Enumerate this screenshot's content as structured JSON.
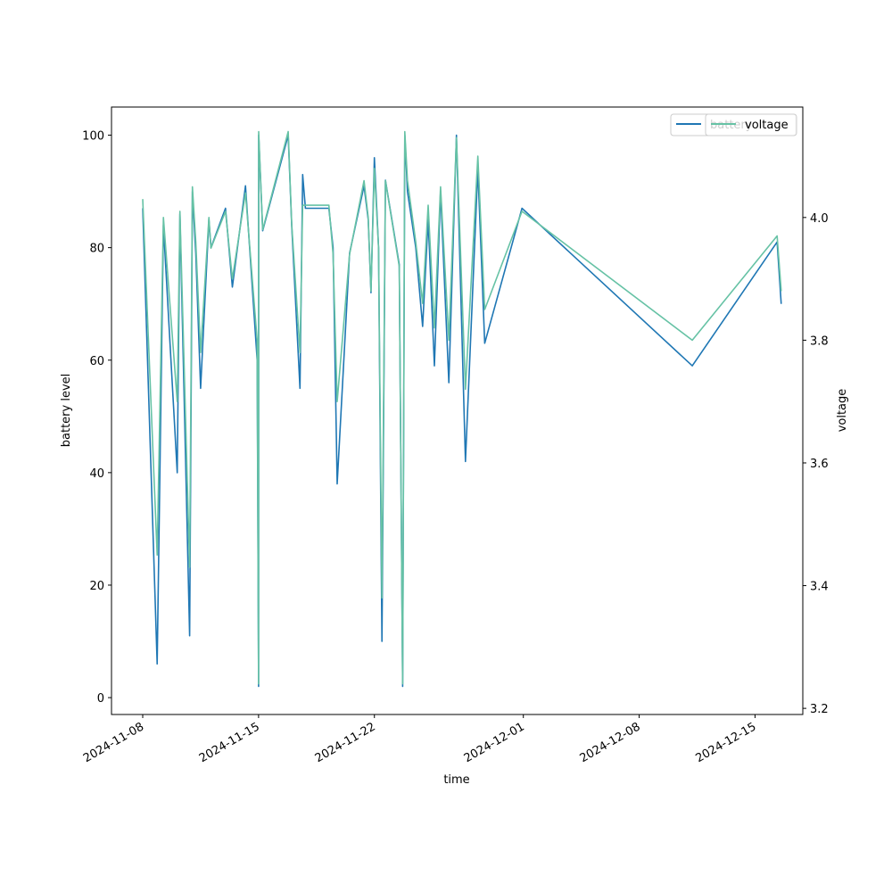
{
  "chart_data": {
    "type": "line",
    "xlabel": "time",
    "ylabel_left": "battery level",
    "ylabel_right": "voltage",
    "xlim": [
      "2024-11-08",
      "2024-12-16"
    ],
    "ylim_left": [
      -3,
      105
    ],
    "ylim_right": [
      3.19,
      4.18
    ],
    "x_ticks": [
      "2024-11-08",
      "2024-11-15",
      "2024-11-22",
      "2024-12-01",
      "2024-12-08",
      "2024-12-15"
    ],
    "y_ticks_left": [
      0,
      20,
      40,
      60,
      80,
      100
    ],
    "y_ticks_right": [
      3.2,
      3.4,
      3.6,
      3.8,
      4.0
    ],
    "grid": false,
    "legend_position": "top-right",
    "series": [
      {
        "name": "battery",
        "axis": "left",
        "color": "#1f77b4",
        "points": [
          [
            "2024-11-08T00:00",
            87
          ],
          [
            "2024-11-08T21:00",
            6
          ],
          [
            "2024-11-09T06:00",
            84
          ],
          [
            "2024-11-10T02:00",
            40
          ],
          [
            "2024-11-10T06:00",
            86
          ],
          [
            "2024-11-10T20:00",
            11
          ],
          [
            "2024-11-11T00:00",
            90
          ],
          [
            "2024-11-11T05:00",
            79
          ],
          [
            "2024-11-11T12:00",
            55
          ],
          [
            "2024-11-12T00:00",
            85
          ],
          [
            "2024-11-12T03:00",
            80
          ],
          [
            "2024-11-13T00:00",
            87
          ],
          [
            "2024-11-13T10:00",
            73
          ],
          [
            "2024-11-14T05:00",
            91
          ],
          [
            "2024-11-14T22:00",
            60
          ],
          [
            "2024-11-15T00:00",
            2
          ],
          [
            "2024-11-15T00:10",
            100
          ],
          [
            "2024-11-15T06:00",
            83
          ],
          [
            "2024-11-16T19:00",
            100
          ],
          [
            "2024-11-17T00:00",
            84
          ],
          [
            "2024-11-17T12:00",
            55
          ],
          [
            "2024-11-17T16:00",
            93
          ],
          [
            "2024-11-17T20:00",
            87
          ],
          [
            "2024-11-19T06:00",
            87
          ],
          [
            "2024-11-19T12:00",
            80
          ],
          [
            "2024-11-19T18:00",
            38
          ],
          [
            "2024-11-20T12:00",
            79
          ],
          [
            "2024-11-21T09:00",
            91
          ],
          [
            "2024-11-21T15:00",
            85
          ],
          [
            "2024-11-21T19:00",
            72
          ],
          [
            "2024-11-22T00:00",
            96
          ],
          [
            "2024-11-22T06:00",
            80
          ],
          [
            "2024-11-22T11:00",
            10
          ],
          [
            "2024-11-22T16:00",
            92
          ],
          [
            "2024-11-23T12:00",
            77
          ],
          [
            "2024-11-23T17:00",
            2
          ],
          [
            "2024-11-23T20:00",
            100
          ],
          [
            "2024-11-24T00:00",
            90
          ],
          [
            "2024-11-24T12:00",
            80
          ],
          [
            "2024-11-24T22:00",
            66
          ],
          [
            "2024-11-25T06:00",
            85
          ],
          [
            "2024-11-25T15:00",
            59
          ],
          [
            "2024-11-26T00:00",
            90
          ],
          [
            "2024-11-26T12:00",
            56
          ],
          [
            "2024-11-26T23:00",
            100
          ],
          [
            "2024-11-27T12:00",
            42
          ],
          [
            "2024-11-28T06:00",
            94
          ],
          [
            "2024-11-28T16:00",
            63
          ],
          [
            "2024-11-30T22:00",
            87
          ],
          [
            "2024-12-11T05:00",
            59
          ],
          [
            "2024-12-16T08:00",
            81
          ],
          [
            "2024-12-16T14:00",
            70
          ]
        ]
      },
      {
        "name": "voltage",
        "axis": "right",
        "color": "#66c2a5",
        "points": [
          [
            "2024-11-08T00:00",
            4.03
          ],
          [
            "2024-11-08T21:00",
            3.45
          ],
          [
            "2024-11-09T06:00",
            4.0
          ],
          [
            "2024-11-10T02:00",
            3.7
          ],
          [
            "2024-11-10T06:00",
            4.01
          ],
          [
            "2024-11-10T20:00",
            3.43
          ],
          [
            "2024-11-11T00:00",
            4.05
          ],
          [
            "2024-11-11T05:00",
            3.96
          ],
          [
            "2024-11-11T12:00",
            3.78
          ],
          [
            "2024-11-12T00:00",
            4.0
          ],
          [
            "2024-11-12T03:00",
            3.95
          ],
          [
            "2024-11-13T00:00",
            4.01
          ],
          [
            "2024-11-13T10:00",
            3.9
          ],
          [
            "2024-11-14T05:00",
            4.04
          ],
          [
            "2024-11-14T22:00",
            3.8
          ],
          [
            "2024-11-15T00:00",
            3.24
          ],
          [
            "2024-11-15T00:10",
            4.14
          ],
          [
            "2024-11-15T06:00",
            3.98
          ],
          [
            "2024-11-16T19:00",
            4.14
          ],
          [
            "2024-11-17T00:00",
            3.99
          ],
          [
            "2024-11-17T12:00",
            3.78
          ],
          [
            "2024-11-17T16:00",
            4.02
          ],
          [
            "2024-11-17T20:00",
            4.02
          ],
          [
            "2024-11-19T06:00",
            4.02
          ],
          [
            "2024-11-19T12:00",
            3.94
          ],
          [
            "2024-11-19T18:00",
            3.7
          ],
          [
            "2024-11-20T12:00",
            3.94
          ],
          [
            "2024-11-21T09:00",
            4.06
          ],
          [
            "2024-11-21T15:00",
            4.0
          ],
          [
            "2024-11-21T19:00",
            3.88
          ],
          [
            "2024-11-22T00:00",
            4.08
          ],
          [
            "2024-11-22T06:00",
            3.95
          ],
          [
            "2024-11-22T11:00",
            3.38
          ],
          [
            "2024-11-22T16:00",
            4.06
          ],
          [
            "2024-11-23T12:00",
            3.92
          ],
          [
            "2024-11-23T17:00",
            3.24
          ],
          [
            "2024-11-23T20:00",
            4.14
          ],
          [
            "2024-11-24T00:00",
            4.06
          ],
          [
            "2024-11-24T12:00",
            3.96
          ],
          [
            "2024-11-24T22:00",
            3.86
          ],
          [
            "2024-11-25T06:00",
            4.02
          ],
          [
            "2024-11-25T15:00",
            3.82
          ],
          [
            "2024-11-26T00:00",
            4.05
          ],
          [
            "2024-11-26T12:00",
            3.8
          ],
          [
            "2024-11-26T23:00",
            4.13
          ],
          [
            "2024-11-27T12:00",
            3.72
          ],
          [
            "2024-11-28T06:00",
            4.1
          ],
          [
            "2024-11-28T16:00",
            3.85
          ],
          [
            "2024-11-30T22:00",
            4.01
          ],
          [
            "2024-12-11T05:00",
            3.8
          ],
          [
            "2024-12-16T08:00",
            3.97
          ],
          [
            "2024-12-16T14:00",
            3.88
          ]
        ]
      }
    ]
  }
}
